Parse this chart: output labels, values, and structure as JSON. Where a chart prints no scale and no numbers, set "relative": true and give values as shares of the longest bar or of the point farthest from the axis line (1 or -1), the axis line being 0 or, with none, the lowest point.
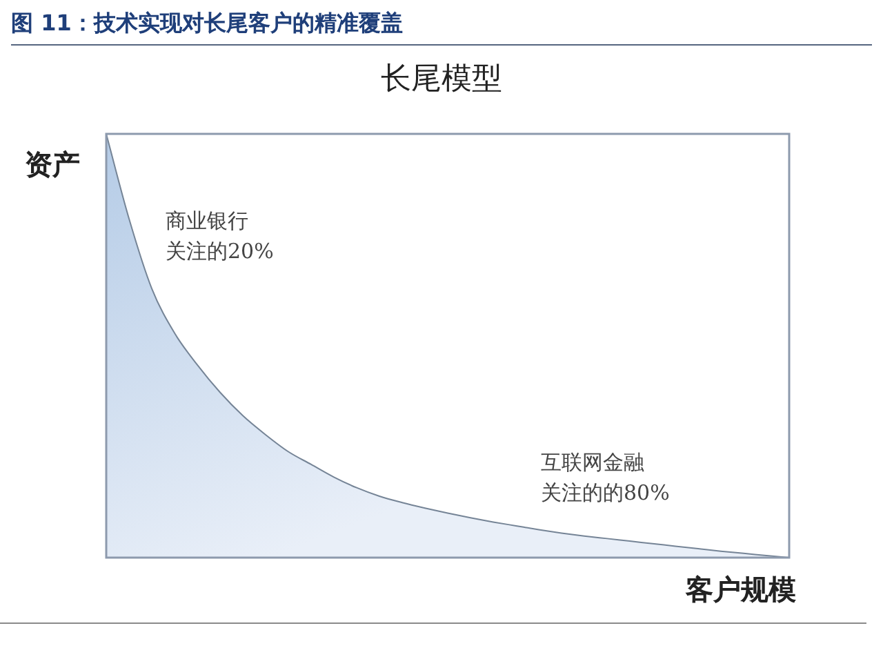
{
  "chart_data": {
    "type": "area",
    "title": "图 11：技术实现对长尾客户的精准覆盖",
    "subtitle": "长尾模型",
    "xlabel": "客户规模",
    "ylabel": "资产",
    "categories": [
      null,
      null,
      null,
      null,
      null,
      null,
      null,
      null,
      null,
      null,
      null,
      null,
      null,
      null,
      null,
      null,
      null,
      null,
      null,
      null,
      null,
      null,
      null,
      null,
      null,
      null,
      null,
      null,
      null,
      null,
      null
    ],
    "values": [
      1.0,
      0.8,
      0.635,
      0.53,
      0.455,
      0.39,
      0.335,
      0.29,
      0.25,
      0.22,
      0.19,
      0.165,
      0.145,
      0.13,
      0.117,
      0.105,
      0.094,
      0.084,
      0.075,
      0.066,
      0.058,
      0.051,
      0.045,
      0.039,
      0.033,
      0.027,
      0.021,
      0.015,
      0.01,
      0.005,
      0.0
    ],
    "color": "#b4cbe6",
    "relative": true,
    "annotations": [
      "商业银行关注的20%",
      "互联网金融关注的的80%"
    ]
  }
}
